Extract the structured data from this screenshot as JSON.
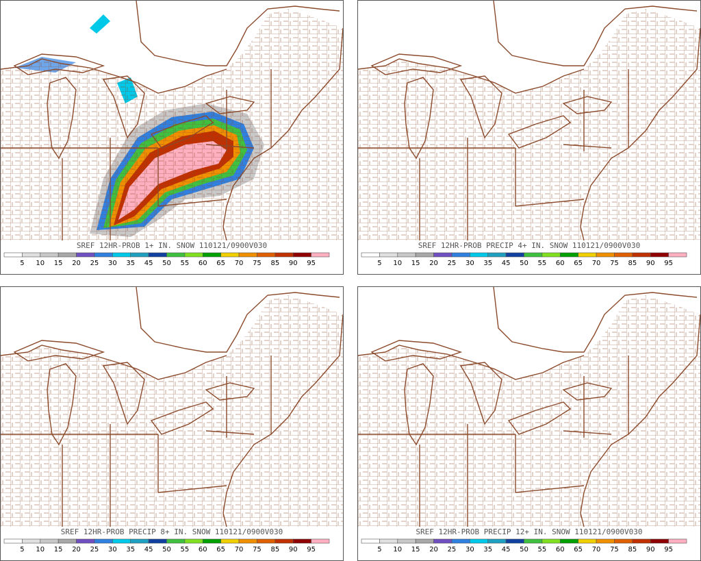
{
  "panels": [
    {
      "title": "SREF 12HR-PROB 1+ IN. SNOW 110121/0900V030"
    },
    {
      "title": "SREF 12HR-PROB PRECIP 4+ IN. SNOW 110121/0900V030"
    },
    {
      "title": "SREF 12HR-PROB PRECIP 8+ IN. SNOW 110121/0900V030"
    },
    {
      "title": "SREF 12HR-PROB PRECIP 12+ IN. SNOW 110121/0900V030"
    }
  ],
  "legend": {
    "labels": [
      "5",
      "10",
      "15",
      "20",
      "25",
      "30",
      "35",
      "45",
      "50",
      "55",
      "60",
      "65",
      "70",
      "75",
      "85",
      "90",
      "95"
    ],
    "colors": [
      "#ffffff",
      "#e0e0e0",
      "#c8c8c8",
      "#a8a8a8",
      "#7050c0",
      "#3080e0",
      "#00c8e8",
      "#20a0c0",
      "#1040a0",
      "#40c040",
      "#80e020",
      "#00a000",
      "#f0d000",
      "#f09000",
      "#e06000",
      "#c03000",
      "#900000",
      "#ffb0c0"
    ]
  }
}
